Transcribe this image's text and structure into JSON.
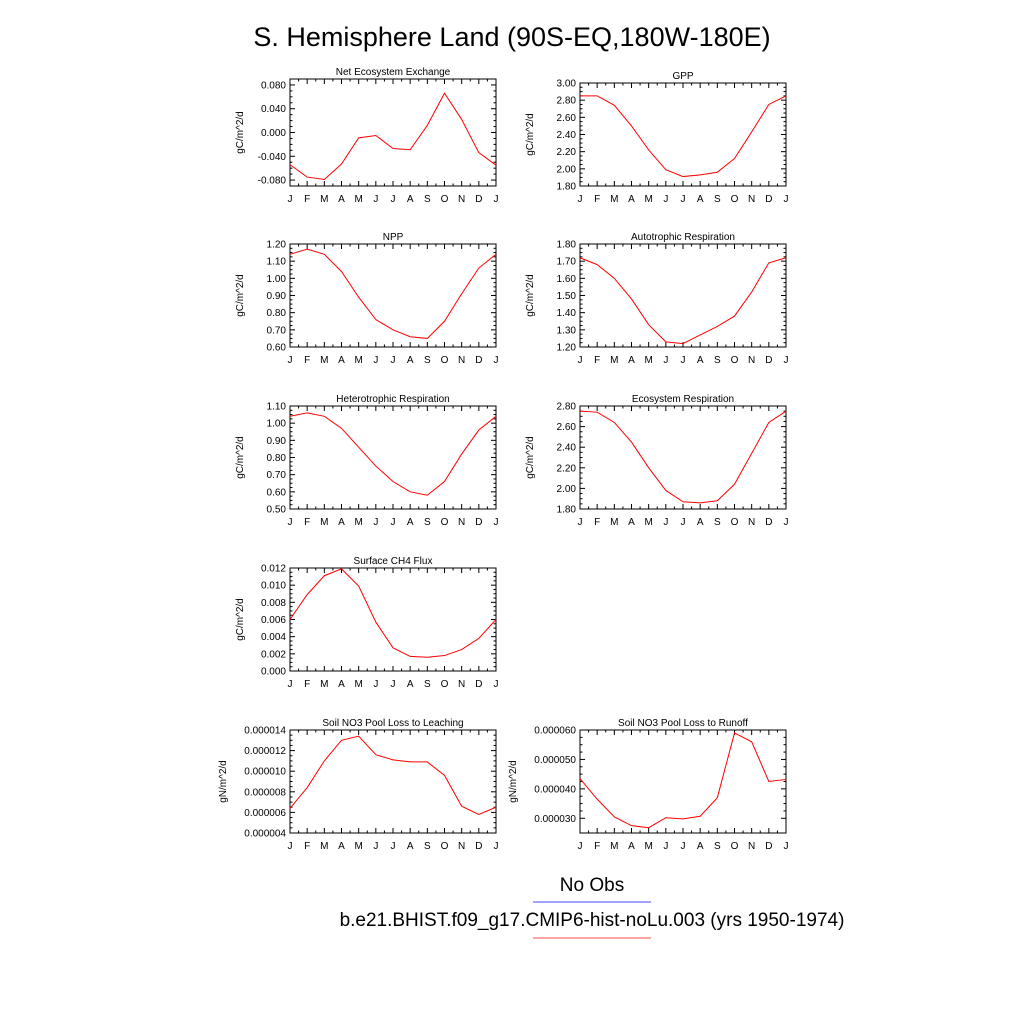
{
  "page": {
    "title": "S. Hemisphere Land (90S-EQ,180W-180E)"
  },
  "legend": {
    "entries": [
      {
        "label": "No Obs",
        "color": "#6a6aff"
      },
      {
        "label": "b.e21.BHIST.f09_g17.CMIP6-hist-noLu.003 (yrs 1950-1974)",
        "color": "#ff6a6a"
      }
    ]
  },
  "months": [
    "J",
    "F",
    "M",
    "A",
    "M",
    "J",
    "J",
    "A",
    "S",
    "O",
    "N",
    "D",
    "J"
  ],
  "chart_data": [
    {
      "type": "line",
      "title": "Net Ecosystem Exchange",
      "ylabel": "gC/m^2/d",
      "ylim": [
        -0.09,
        0.09
      ],
      "yticks": [
        -0.08,
        -0.04,
        0.0,
        0.04,
        0.08
      ],
      "yticklabels": [
        "-0.080",
        "-0.040",
        "0.000",
        "0.040",
        "0.080"
      ],
      "series": [
        {
          "color": "#ff0000",
          "values": [
            -0.054,
            -0.075,
            -0.079,
            -0.053,
            -0.009,
            -0.005,
            -0.027,
            -0.029,
            0.012,
            0.066,
            0.022,
            -0.034,
            -0.055
          ]
        }
      ]
    },
    {
      "type": "line",
      "title": "GPP",
      "ylabel": "gC/m^2/d",
      "ylim": [
        1.8,
        3.0
      ],
      "yticks": [
        1.8,
        2.0,
        2.2,
        2.4,
        2.6,
        2.8,
        3.0
      ],
      "yticklabels": [
        "1.80",
        "2.00",
        "2.20",
        "2.40",
        "2.60",
        "2.80",
        "3.00"
      ],
      "series": [
        {
          "color": "#ff0000",
          "values": [
            2.85,
            2.85,
            2.74,
            2.5,
            2.22,
            1.99,
            1.91,
            1.93,
            1.96,
            2.12,
            2.43,
            2.75,
            2.85
          ]
        }
      ]
    },
    {
      "type": "line",
      "title": "NPP",
      "ylabel": "gC/m^2/d",
      "ylim": [
        0.6,
        1.2
      ],
      "yticks": [
        0.6,
        0.7,
        0.8,
        0.9,
        1.0,
        1.1,
        1.2
      ],
      "yticklabels": [
        "0.60",
        "0.70",
        "0.80",
        "0.90",
        "1.00",
        "1.10",
        "1.20"
      ],
      "series": [
        {
          "color": "#ff0000",
          "values": [
            1.14,
            1.17,
            1.14,
            1.04,
            0.89,
            0.76,
            0.7,
            0.66,
            0.65,
            0.75,
            0.91,
            1.06,
            1.14
          ]
        }
      ]
    },
    {
      "type": "line",
      "title": "Autotrophic Respiration",
      "ylabel": "gC/m^2/d",
      "ylim": [
        1.2,
        1.8
      ],
      "yticks": [
        1.2,
        1.3,
        1.4,
        1.5,
        1.6,
        1.7,
        1.8
      ],
      "yticklabels": [
        "1.20",
        "1.30",
        "1.40",
        "1.50",
        "1.60",
        "1.70",
        "1.80"
      ],
      "series": [
        {
          "color": "#ff0000",
          "values": [
            1.72,
            1.68,
            1.6,
            1.48,
            1.33,
            1.23,
            1.22,
            1.27,
            1.32,
            1.38,
            1.52,
            1.69,
            1.72
          ]
        }
      ]
    },
    {
      "type": "line",
      "title": "Heterotrophic Respiration",
      "ylabel": "gC/m^2/d",
      "ylim": [
        0.5,
        1.1
      ],
      "yticks": [
        0.5,
        0.6,
        0.7,
        0.8,
        0.9,
        1.0,
        1.1
      ],
      "yticklabels": [
        "0.50",
        "0.60",
        "0.70",
        "0.80",
        "0.90",
        "1.00",
        "1.10"
      ],
      "series": [
        {
          "color": "#ff0000",
          "values": [
            1.04,
            1.06,
            1.04,
            0.97,
            0.86,
            0.75,
            0.66,
            0.6,
            0.58,
            0.66,
            0.82,
            0.96,
            1.04
          ]
        }
      ]
    },
    {
      "type": "line",
      "title": "Ecosystem Respiration",
      "ylabel": "gC/m^2/d",
      "ylim": [
        1.8,
        2.8
      ],
      "yticks": [
        1.8,
        2.0,
        2.2,
        2.4,
        2.6,
        2.8
      ],
      "yticklabels": [
        "1.80",
        "2.00",
        "2.20",
        "2.40",
        "2.60",
        "2.80"
      ],
      "series": [
        {
          "color": "#ff0000",
          "values": [
            2.75,
            2.74,
            2.64,
            2.45,
            2.2,
            1.98,
            1.87,
            1.86,
            1.88,
            2.04,
            2.34,
            2.64,
            2.75
          ]
        }
      ]
    },
    {
      "type": "line",
      "title": "Surface CH4 Flux",
      "ylabel": "gC/m^2/d",
      "ylim": [
        0.0,
        0.012
      ],
      "yticks": [
        0.0,
        0.002,
        0.004,
        0.006,
        0.008,
        0.01,
        0.012
      ],
      "yticklabels": [
        "0.000",
        "0.002",
        "0.004",
        "0.006",
        "0.008",
        "0.010",
        "0.012"
      ],
      "series": [
        {
          "color": "#ff0000",
          "values": [
            0.006,
            0.0089,
            0.0111,
            0.0119,
            0.0099,
            0.0057,
            0.0027,
            0.0017,
            0.0016,
            0.0018,
            0.0025,
            0.0038,
            0.006
          ]
        }
      ]
    },
    {
      "type": "line",
      "title": "Soil NO3 Pool Loss to Leaching",
      "ylabel": "gN/m^2/d",
      "ylim": [
        4e-06,
        1.4e-05
      ],
      "yticks": [
        4e-06,
        6e-06,
        8e-06,
        1e-05,
        1.2e-05,
        1.4e-05
      ],
      "yticklabels": [
        "0.000004",
        "0.000006",
        "0.000008",
        "0.000010",
        "0.000012",
        "0.000014"
      ],
      "series": [
        {
          "color": "#ff0000",
          "values": [
            6.4e-06,
            8.4e-06,
            1.1e-05,
            1.3e-05,
            1.34e-05,
            1.16e-05,
            1.11e-05,
            1.09e-05,
            1.09e-05,
            9.6e-06,
            6.6e-06,
            5.8e-06,
            6.5e-06
          ]
        }
      ]
    },
    {
      "type": "line",
      "title": "Soil NO3 Pool Loss to Runoff",
      "ylabel": "gN/m^2/d",
      "ylim": [
        2.5e-05,
        6e-05
      ],
      "yticks": [
        3e-05,
        4e-05,
        5e-05,
        6e-05
      ],
      "yticklabels": [
        "0.000030",
        "0.000040",
        "0.000050",
        "0.000060"
      ],
      "series": [
        {
          "color": "#ff0000",
          "values": [
            4.35e-05,
            3.65e-05,
            3.05e-05,
            2.75e-05,
            2.68e-05,
            3.02e-05,
            2.98e-05,
            3.07e-05,
            3.7e-05,
            5.9e-05,
            5.6e-05,
            4.25e-05,
            4.32e-05
          ]
        }
      ]
    }
  ]
}
